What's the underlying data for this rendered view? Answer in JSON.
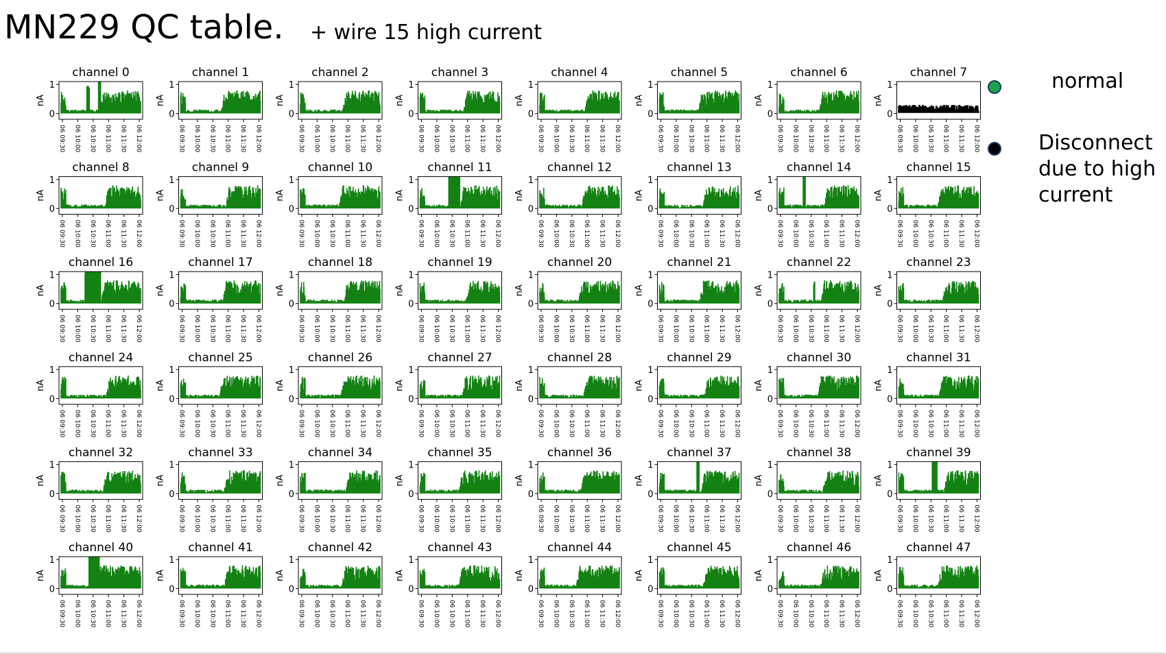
{
  "slide": {
    "title": "MN229 QC table.",
    "subtitle": "+ wire 15 high current"
  },
  "legend": [
    {
      "label": "normal",
      "color": "#1aa34a"
    },
    {
      "label": "Disconnect\ndue to high\ncurrent",
      "color": "#000000"
    }
  ],
  "colors": {
    "normal": "#138213",
    "disconnected": "#000000"
  },
  "chart_data": {
    "type": "line",
    "layout": "small-multiples 8x6",
    "ylabel": "nA",
    "ylim": [
      -0.2,
      1.1
    ],
    "yticks": [
      "0",
      "1"
    ],
    "xticks": [
      "06 09:30",
      "06 10:00",
      "06 10:30",
      "06 11:00",
      "06 11:30",
      "06 12:00"
    ],
    "panel_title_prefix": "channel",
    "channels": [
      {
        "id": 0,
        "status": "normal",
        "note": "early spikes"
      },
      {
        "id": 1,
        "status": "normal"
      },
      {
        "id": 2,
        "status": "normal"
      },
      {
        "id": 3,
        "status": "normal"
      },
      {
        "id": 4,
        "status": "normal"
      },
      {
        "id": 5,
        "status": "normal"
      },
      {
        "id": 6,
        "status": "normal"
      },
      {
        "id": 7,
        "status": "disconnected"
      },
      {
        "id": 8,
        "status": "normal"
      },
      {
        "id": 9,
        "status": "normal"
      },
      {
        "id": 10,
        "status": "normal"
      },
      {
        "id": 11,
        "status": "normal",
        "note": "high-current spike"
      },
      {
        "id": 12,
        "status": "normal"
      },
      {
        "id": 13,
        "status": "normal"
      },
      {
        "id": 14,
        "status": "normal",
        "note": "high-current spike"
      },
      {
        "id": 15,
        "status": "normal"
      },
      {
        "id": 16,
        "status": "normal",
        "note": "broad bump"
      },
      {
        "id": 17,
        "status": "normal"
      },
      {
        "id": 18,
        "status": "normal"
      },
      {
        "id": 19,
        "status": "normal"
      },
      {
        "id": 20,
        "status": "normal"
      },
      {
        "id": 21,
        "status": "normal"
      },
      {
        "id": 22,
        "status": "normal"
      },
      {
        "id": 23,
        "status": "normal"
      },
      {
        "id": 24,
        "status": "normal"
      },
      {
        "id": 25,
        "status": "normal"
      },
      {
        "id": 26,
        "status": "normal"
      },
      {
        "id": 27,
        "status": "normal"
      },
      {
        "id": 28,
        "status": "normal"
      },
      {
        "id": 29,
        "status": "normal"
      },
      {
        "id": 30,
        "status": "normal"
      },
      {
        "id": 31,
        "status": "normal"
      },
      {
        "id": 32,
        "status": "normal"
      },
      {
        "id": 33,
        "status": "normal"
      },
      {
        "id": 34,
        "status": "normal"
      },
      {
        "id": 35,
        "status": "normal"
      },
      {
        "id": 36,
        "status": "normal"
      },
      {
        "id": 37,
        "status": "normal",
        "note": "spike"
      },
      {
        "id": 38,
        "status": "normal"
      },
      {
        "id": 39,
        "status": "normal",
        "note": "spike"
      },
      {
        "id": 40,
        "status": "normal",
        "note": "spike"
      },
      {
        "id": 41,
        "status": "normal"
      },
      {
        "id": 42,
        "status": "normal"
      },
      {
        "id": 43,
        "status": "normal"
      },
      {
        "id": 44,
        "status": "normal"
      },
      {
        "id": 45,
        "status": "normal"
      },
      {
        "id": 46,
        "status": "normal"
      },
      {
        "id": 47,
        "status": "normal"
      }
    ]
  }
}
